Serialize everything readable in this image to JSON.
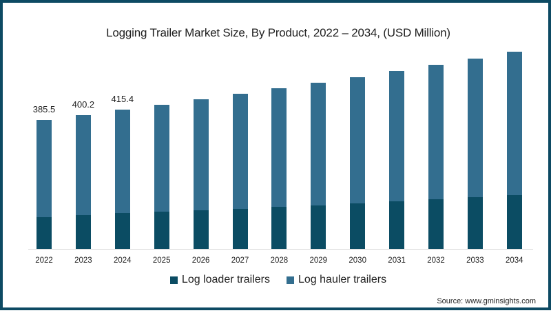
{
  "title": "Logging Trailer Market Size, By Product, 2022 – 2034, (USD Million)",
  "source": "Source: www.gminsights.com",
  "colors": {
    "border": "#0d4a63",
    "loader": "#0b4c63",
    "hauler": "#336e8f"
  },
  "legend": [
    {
      "label": "Log loader trailers",
      "color": "#0b4c63"
    },
    {
      "label": "Log hauler trailers",
      "color": "#336e8f"
    }
  ],
  "chart_data": {
    "type": "bar",
    "stacked": true,
    "title": "Logging Trailer Market Size, By Product, 2022 – 2034, (USD Million)",
    "xlabel": "",
    "ylabel": "USD Million",
    "categories": [
      "2022",
      "2023",
      "2024",
      "2025",
      "2026",
      "2027",
      "2028",
      "2029",
      "2030",
      "2031",
      "2032",
      "2033",
      "2034"
    ],
    "series": [
      {
        "name": "Log loader trailers",
        "values": [
          95.3,
          101,
          107,
          111,
          116,
          120,
          126,
          130,
          136,
          142,
          148,
          155,
          161
        ]
      },
      {
        "name": "Log hauler trailers",
        "values": [
          290.2,
          299.2,
          308.4,
          320,
          331,
          343,
          354,
          366,
          378,
          390,
          402,
          415,
          429
        ]
      }
    ],
    "totals": [
      385.5,
      400.2,
      415.4,
      431,
      447,
      463,
      480,
      496,
      514,
      532,
      550,
      570,
      590
    ],
    "data_labels": {
      "2022": "385.5",
      "2023": "400.2",
      "2024": "415.4"
    },
    "legend_position": "bottom",
    "grid": false,
    "ylim": [
      0,
      620
    ]
  }
}
